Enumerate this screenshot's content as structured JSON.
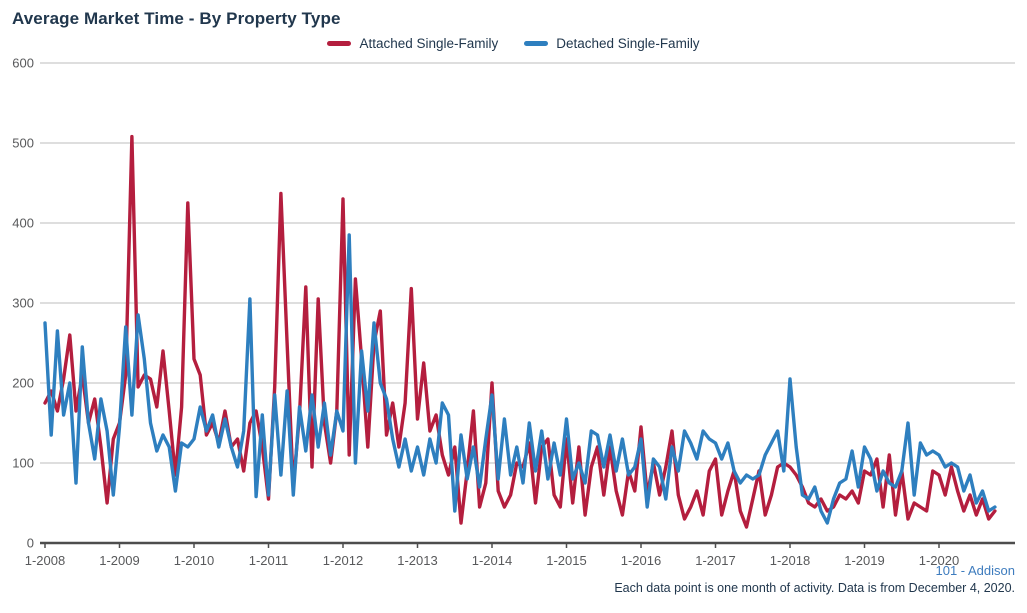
{
  "header": {
    "title": "Average Market Time - By Property Type"
  },
  "legend": {
    "items": [
      {
        "label": "Attached Single-Family",
        "color": "#b41e3e"
      },
      {
        "label": "Detached Single-Family",
        "color": "#2e7fbf"
      }
    ]
  },
  "footer": {
    "attribution": "101 - Addison",
    "note": "Each data point is one month of activity. Data is from December 4, 2020."
  },
  "colors": {
    "title_text": "#21374d",
    "axis_text": "#58595b",
    "gridline": "#c9c9c9",
    "axis_line": "#4d4d4d",
    "attached_series": "#b41e3e",
    "detached_series": "#2e7fbf",
    "attribution_link": "#3e7cbe"
  },
  "chart_data": {
    "type": "line",
    "title": "Average Market Time - By Property Type",
    "ylabel": "",
    "xlabel": "",
    "ylim": [
      0,
      600
    ],
    "y_ticks": [
      0,
      100,
      200,
      300,
      400,
      500,
      600
    ],
    "x_tick_labels": [
      "1-2008",
      "1-2009",
      "1-2010",
      "1-2011",
      "1-2012",
      "1-2013",
      "1-2014",
      "1-2015",
      "1-2016",
      "1-2017",
      "1-2018",
      "1-2019",
      "1-2020"
    ],
    "x_start": "1-2008",
    "x_end": "10-2020",
    "frequency": "monthly",
    "grid": "horizontal",
    "legend_position": "top-center",
    "series": [
      {
        "name": "Attached Single-Family",
        "color": "#b41e3e",
        "values": [
          175,
          190,
          165,
          205,
          260,
          165,
          210,
          150,
          180,
          120,
          50,
          130,
          150,
          210,
          508,
          195,
          210,
          205,
          170,
          240,
          165,
          85,
          170,
          425,
          230,
          210,
          135,
          150,
          125,
          165,
          120,
          130,
          90,
          150,
          165,
          120,
          55,
          195,
          437,
          250,
          70,
          160,
          320,
          95,
          305,
          150,
          100,
          165,
          430,
          110,
          330,
          230,
          120,
          250,
          290,
          135,
          175,
          120,
          175,
          318,
          155,
          225,
          140,
          160,
          110,
          85,
          120,
          25,
          90,
          165,
          45,
          75,
          200,
          65,
          45,
          60,
          100,
          95,
          125,
          50,
          120,
          130,
          60,
          45,
          130,
          50,
          120,
          35,
          95,
          120,
          60,
          120,
          65,
          35,
          90,
          65,
          145,
          60,
          100,
          60,
          95,
          140,
          60,
          30,
          45,
          65,
          35,
          90,
          105,
          35,
          65,
          90,
          40,
          20,
          55,
          90,
          35,
          60,
          95,
          100,
          95,
          85,
          70,
          50,
          45,
          55,
          40,
          45,
          60,
          55,
          65,
          50,
          90,
          85,
          105,
          45,
          110,
          35,
          90,
          30,
          50,
          45,
          40,
          90,
          85,
          60,
          95,
          65,
          40,
          60,
          35,
          55,
          30,
          40
        ]
      },
      {
        "name": "Detached Single-Family",
        "color": "#2e7fbf",
        "values": [
          275,
          135,
          265,
          160,
          200,
          75,
          245,
          150,
          105,
          180,
          140,
          60,
          145,
          270,
          160,
          285,
          230,
          150,
          115,
          135,
          120,
          65,
          125,
          120,
          130,
          170,
          140,
          160,
          120,
          155,
          120,
          95,
          140,
          305,
          58,
          160,
          60,
          185,
          85,
          190,
          60,
          170,
          115,
          185,
          120,
          175,
          110,
          165,
          140,
          385,
          100,
          240,
          165,
          275,
          200,
          180,
          130,
          95,
          130,
          90,
          120,
          85,
          130,
          100,
          175,
          160,
          40,
          135,
          80,
          120,
          70,
          130,
          185,
          80,
          155,
          85,
          120,
          75,
          150,
          90,
          140,
          80,
          125,
          85,
          155,
          80,
          100,
          75,
          140,
          135,
          95,
          135,
          90,
          130,
          85,
          95,
          130,
          45,
          105,
          95,
          55,
          120,
          90,
          140,
          125,
          105,
          140,
          130,
          125,
          105,
          125,
          90,
          75,
          85,
          80,
          85,
          110,
          125,
          140,
          90,
          205,
          120,
          60,
          55,
          70,
          40,
          25,
          55,
          75,
          80,
          115,
          70,
          120,
          105,
          65,
          90,
          75,
          70,
          90,
          150,
          60,
          125,
          110,
          115,
          110,
          95,
          100,
          95,
          65,
          85,
          50,
          65,
          40,
          45
        ]
      }
    ]
  }
}
